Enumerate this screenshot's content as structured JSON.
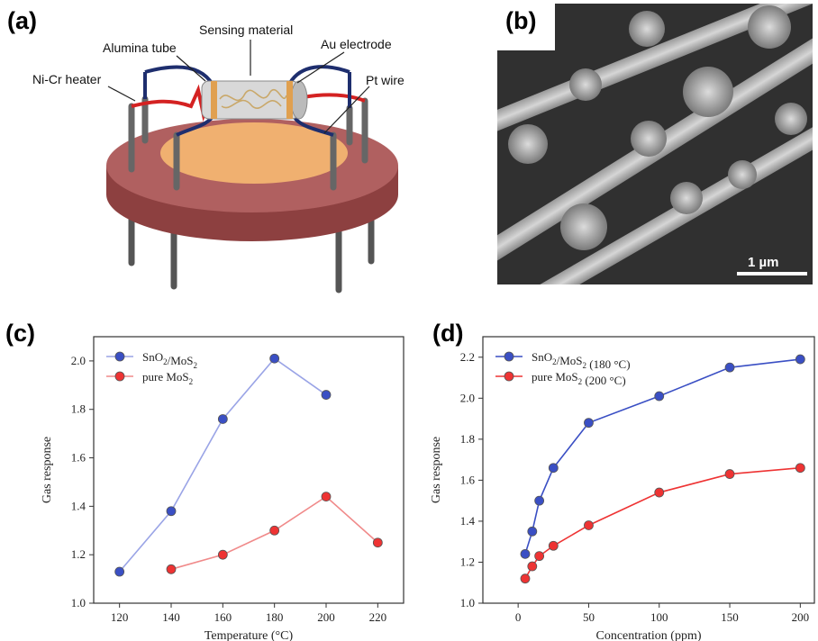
{
  "panels": {
    "a": {
      "letter": "(a)"
    },
    "b": {
      "letter": "(b)"
    },
    "c": {
      "letter": "(c)"
    },
    "d": {
      "letter": "(d)"
    }
  },
  "device_labels": {
    "sensing_material": "Sensing material",
    "alumina_tube": "Alumina tube",
    "au_electrode": "Au electrode",
    "nicr_heater": "Ni-Cr heater",
    "pt_wire": "Pt wire"
  },
  "sem": {
    "scalebar_text": "1 µm"
  },
  "colors": {
    "blue_series": "#3a4fc4",
    "red_series": "#ee3333",
    "blue_line_c": "#9aa4e6",
    "red_line_c": "#f08a8a",
    "heater": "#d42222",
    "wire": "#1e2e6e",
    "base_top": "#b06060",
    "base_side": "#8d4040",
    "pad": "#f0b070"
  },
  "chart_data": [
    {
      "type": "line",
      "xlabel": "Temperature (°C)",
      "ylabel": "Gas response",
      "xlim": [
        110,
        230
      ],
      "ylim": [
        1.0,
        2.1
      ],
      "xticks": [
        120,
        140,
        160,
        180,
        200,
        220
      ],
      "yticks": [
        1.0,
        1.2,
        1.4,
        1.6,
        1.8,
        2.0
      ],
      "legend_position": "top-left",
      "series": [
        {
          "name": "SnO2/MoS2",
          "x": [
            120,
            140,
            160,
            180,
            200
          ],
          "y": [
            1.13,
            1.38,
            1.76,
            2.01,
            1.86
          ]
        },
        {
          "name": "pure MoS2",
          "x": [
            140,
            160,
            180,
            200,
            220
          ],
          "y": [
            1.14,
            1.2,
            1.3,
            1.44,
            1.25
          ]
        }
      ]
    },
    {
      "type": "line",
      "xlabel": "Concentration (ppm)",
      "ylabel": "Gas response",
      "xlim": [
        -25,
        210
      ],
      "ylim": [
        1.0,
        2.3
      ],
      "xticks": [
        0,
        50,
        100,
        150,
        200
      ],
      "yticks": [
        1.0,
        1.2,
        1.4,
        1.6,
        1.8,
        2.0,
        2.2
      ],
      "legend_position": "top-left",
      "series": [
        {
          "name": "SnO2/MoS2 (180 °C)",
          "x": [
            5,
            10,
            15,
            25,
            50,
            100,
            150,
            200
          ],
          "y": [
            1.24,
            1.35,
            1.5,
            1.66,
            1.88,
            2.01,
            2.15,
            2.19
          ]
        },
        {
          "name": "pure MoS2 (200 °C)",
          "x": [
            5,
            10,
            15,
            25,
            50,
            100,
            150,
            200
          ],
          "y": [
            1.12,
            1.18,
            1.23,
            1.28,
            1.38,
            1.54,
            1.63,
            1.66
          ]
        }
      ]
    }
  ]
}
